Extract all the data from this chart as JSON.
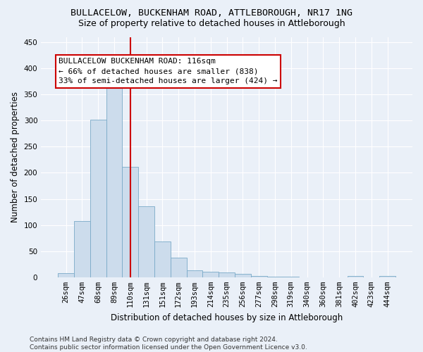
{
  "title1": "BULLACELOW, BUCKENHAM ROAD, ATTLEBOROUGH, NR17 1NG",
  "title2": "Size of property relative to detached houses in Attleborough",
  "xlabel": "Distribution of detached houses by size in Attleborough",
  "ylabel": "Number of detached properties",
  "categories": [
    "26sqm",
    "47sqm",
    "68sqm",
    "89sqm",
    "110sqm",
    "131sqm",
    "151sqm",
    "172sqm",
    "193sqm",
    "214sqm",
    "235sqm",
    "256sqm",
    "277sqm",
    "298sqm",
    "319sqm",
    "340sqm",
    "360sqm",
    "381sqm",
    "402sqm",
    "423sqm",
    "444sqm"
  ],
  "values": [
    8,
    108,
    301,
    362,
    212,
    136,
    68,
    38,
    13,
    10,
    9,
    6,
    3,
    1,
    1,
    0,
    0,
    0,
    3,
    0,
    2
  ],
  "bar_color": "#ccdcec",
  "bar_edge_color": "#7aaac8",
  "vline_x": 4.0,
  "vline_color": "#cc0000",
  "annotation_text": "BULLACELOW BUCKENHAM ROAD: 116sqm\n← 66% of detached houses are smaller (838)\n33% of semi-detached houses are larger (424) →",
  "annotation_box_color": "#ffffff",
  "annotation_box_edge": "#cc0000",
  "ylim": [
    0,
    460
  ],
  "yticks": [
    0,
    50,
    100,
    150,
    200,
    250,
    300,
    350,
    400,
    450
  ],
  "footnote": "Contains HM Land Registry data © Crown copyright and database right 2024.\nContains public sector information licensed under the Open Government Licence v3.0.",
  "background_color": "#eaf0f8",
  "grid_color": "#ffffff",
  "title_fontsize": 9.5,
  "subtitle_fontsize": 9,
  "axis_label_fontsize": 8.5,
  "tick_fontsize": 7.5,
  "annotation_fontsize": 8,
  "footnote_fontsize": 6.5
}
